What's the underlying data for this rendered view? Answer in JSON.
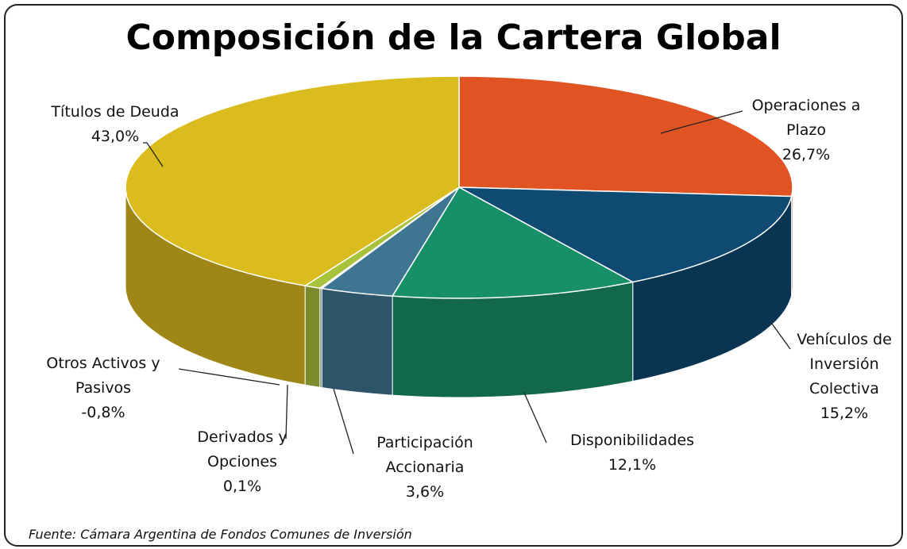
{
  "chart_data": {
    "type": "pie",
    "title": "Composición de la Cartera Global",
    "source": "Fuente:  Cámara Argentina de Fondos Comunes de Inversión",
    "categories": [
      "Operaciones a Plazo",
      "Vehículos de Inversión Colectiva",
      "Disponibilidades",
      "Participación Accionaria",
      "Derivados y Opciones",
      "Otros Activos y Pasivos",
      "Títulos de Deuda"
    ],
    "values": [
      26.7,
      15.2,
      12.1,
      3.6,
      0.1,
      -0.8,
      43.0
    ],
    "value_labels": [
      "26,7%",
      "15,2%",
      "12,1%",
      "3,6%",
      "0,1%",
      "-0,8%",
      "43,0%"
    ],
    "colors": [
      "#e05424",
      "#0e4a72",
      "#17906a",
      "#3e7590",
      "#7a9a8a",
      "#a9c23c",
      "#dbbc1e"
    ]
  }
}
